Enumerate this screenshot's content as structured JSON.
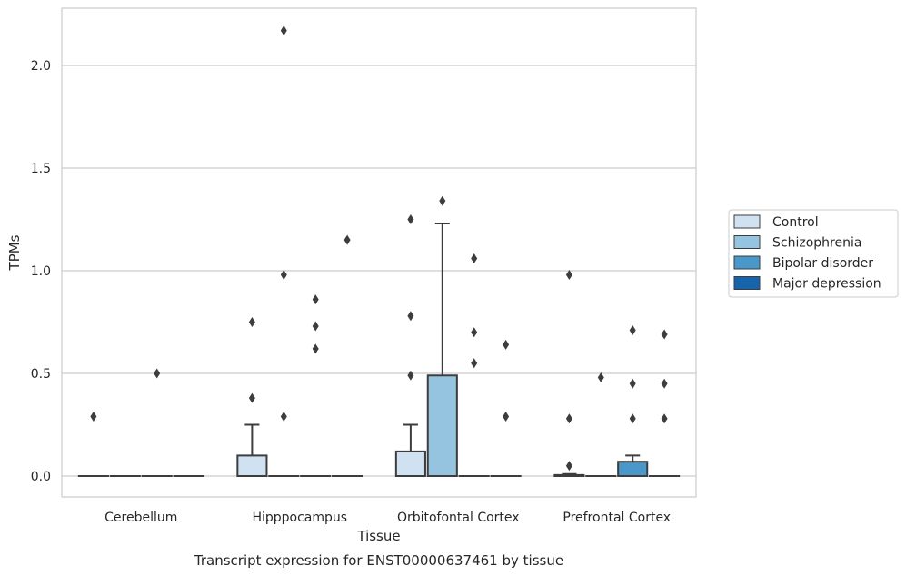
{
  "chart_data": {
    "type": "box",
    "xlabel": "Tissue",
    "ylabel": "TPMs",
    "caption": "Transcript expression for ENST00000637461 by tissue",
    "ylim": [
      -0.1,
      2.3
    ],
    "yticks": [
      0.0,
      0.5,
      1.0,
      1.5,
      2.0
    ],
    "ytick_labels": [
      "0.0",
      "0.5",
      "1.0",
      "1.5",
      "2.0"
    ],
    "grid": "horizontal",
    "legend_placement": "right",
    "categories": [
      "Cerebellum",
      "Hipppocampus",
      "Orbitofontal Cortex",
      "Prefrontal Cortex"
    ],
    "series": [
      {
        "name": "Control",
        "color": "#d0e1f2",
        "boxes": [
          {
            "q1": 0,
            "median": 0,
            "q3": 0,
            "whislo": 0,
            "whishi": 0,
            "fliers": [
              0.29
            ]
          },
          {
            "q1": 0,
            "median": 0,
            "q3": 0.1,
            "whislo": 0,
            "whishi": 0.25,
            "fliers": [
              0.38,
              0.75
            ]
          },
          {
            "q1": 0,
            "median": 0,
            "q3": 0.12,
            "whislo": 0,
            "whishi": 0.25,
            "fliers": [
              0.49,
              0.78,
              1.25
            ]
          },
          {
            "q1": 0,
            "median": 0,
            "q3": 0.005,
            "whislo": 0,
            "whishi": 0.01,
            "fliers": [
              0.05,
              0.28,
              0.98
            ]
          }
        ]
      },
      {
        "name": "Schizophrenia",
        "color": "#94c4df",
        "boxes": [
          {
            "q1": 0,
            "median": 0,
            "q3": 0,
            "whislo": 0,
            "whishi": 0,
            "fliers": []
          },
          {
            "q1": 0,
            "median": 0,
            "q3": 0,
            "whislo": 0,
            "whishi": 0,
            "fliers": [
              0.29,
              0.98,
              2.17
            ]
          },
          {
            "q1": 0,
            "median": 0,
            "q3": 0.49,
            "whislo": 0,
            "whishi": 1.23,
            "fliers": [
              1.34
            ]
          },
          {
            "q1": 0,
            "median": 0,
            "q3": 0,
            "whislo": 0,
            "whishi": 0,
            "fliers": [
              0.48
            ]
          }
        ]
      },
      {
        "name": "Bipolar disorder",
        "color": "#4a98c9",
        "boxes": [
          {
            "q1": 0,
            "median": 0,
            "q3": 0,
            "whislo": 0,
            "whishi": 0,
            "fliers": [
              0.5
            ]
          },
          {
            "q1": 0,
            "median": 0,
            "q3": 0,
            "whislo": 0,
            "whishi": 0,
            "fliers": [
              0.62,
              0.73,
              0.86
            ]
          },
          {
            "q1": 0,
            "median": 0,
            "q3": 0,
            "whislo": 0,
            "whishi": 0,
            "fliers": [
              0.55,
              0.7,
              1.06
            ]
          },
          {
            "q1": 0,
            "median": 0,
            "q3": 0.07,
            "whislo": 0,
            "whishi": 0.1,
            "fliers": [
              0.28,
              0.45,
              0.71
            ]
          }
        ]
      },
      {
        "name": "Major depression",
        "color": "#1764ab",
        "boxes": [
          {
            "q1": 0,
            "median": 0,
            "q3": 0,
            "whislo": 0,
            "whishi": 0,
            "fliers": []
          },
          {
            "q1": 0,
            "median": 0,
            "q3": 0,
            "whislo": 0,
            "whishi": 0,
            "fliers": [
              1.15
            ]
          },
          {
            "q1": 0,
            "median": 0,
            "q3": 0,
            "whislo": 0,
            "whishi": 0,
            "fliers": [
              0.29,
              0.64
            ]
          },
          {
            "q1": 0,
            "median": 0,
            "q3": 0,
            "whislo": 0,
            "whishi": 0,
            "fliers": [
              0.28,
              0.45,
              0.69
            ]
          }
        ]
      }
    ],
    "colors": {
      "grid": "#cccccc",
      "frame": "#cccccc",
      "box_edge": "#3d3d3d",
      "flier": "#3d3d3d"
    }
  }
}
